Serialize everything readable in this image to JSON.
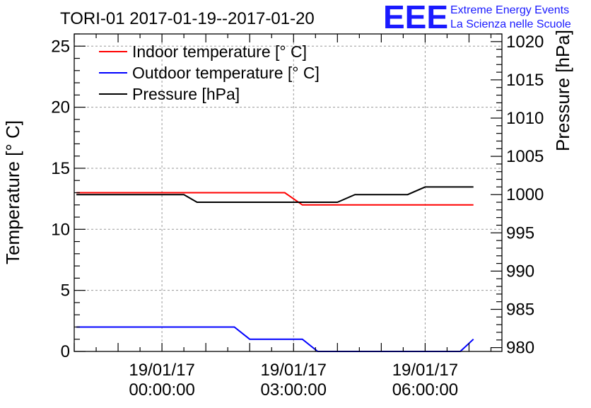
{
  "chart_data": {
    "type": "line",
    "title": "TORI-01 2017-01-19--2017-01-20",
    "logo": {
      "text": "EEE",
      "line1": "Extreme Energy Events",
      "line2": "La Scienza nelle Scuole",
      "color": "#1a1aff"
    },
    "ylabel_left": "Temperature [° C]",
    "ylabel_right": "Pressure [hPa]",
    "y_left_lim": [
      0,
      26
    ],
    "y_right_lim": [
      979.5,
      1021
    ],
    "x_lim_hours": [
      -2.0,
      7.75
    ],
    "y_left_ticks": [
      0,
      5,
      10,
      15,
      20,
      25
    ],
    "y_right_ticks": [
      980,
      985,
      990,
      995,
      1000,
      1005,
      1010,
      1015,
      1020
    ],
    "x_ticks": [
      {
        "hours": 0,
        "date": "19/01/17",
        "time": "00:00:00"
      },
      {
        "hours": 3,
        "date": "19/01/17",
        "time": "03:00:00"
      },
      {
        "hours": 6,
        "date": "19/01/17",
        "time": "06:00:00"
      }
    ],
    "series": [
      {
        "name": "Indoor temperature [° C]",
        "axis": "left",
        "color": "#ff0000",
        "x": [
          -1.95,
          2.8,
          3.2,
          7.1
        ],
        "y": [
          13,
          13,
          12,
          12
        ]
      },
      {
        "name": "Outdoor temperature [° C]",
        "axis": "left",
        "color": "#0000ff",
        "x": [
          -1.95,
          1.65,
          2.0,
          3.2,
          3.55,
          6.8,
          7.1
        ],
        "y": [
          2,
          2,
          1,
          1,
          0,
          0,
          1
        ]
      },
      {
        "name": "Pressure [hPa]",
        "axis": "right",
        "color": "#000000",
        "x": [
          -1.95,
          0.5,
          0.8,
          4.0,
          4.4,
          5.6,
          6.0,
          7.1
        ],
        "y": [
          1000,
          1000,
          999,
          999,
          1000,
          1000,
          1001,
          1001
        ]
      }
    ]
  }
}
